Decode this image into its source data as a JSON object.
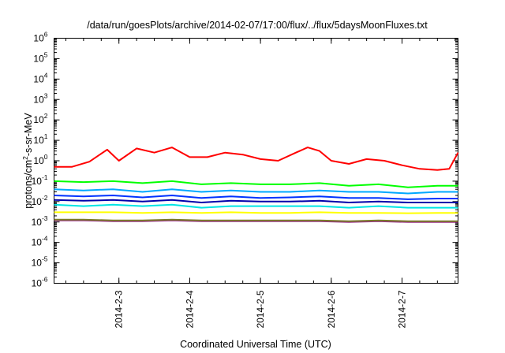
{
  "chart_data": {
    "type": "line",
    "title": "/data/run/goesPlots/archive/2014-02-07/17:00/flux/../flux/5daysMoonFluxes.txt",
    "xlabel": "Coordinated Universal Time (UTC)",
    "ylabel": {
      "prefix": "protons/cm",
      "sup": "2",
      "suffix": "-s-sr-MeV"
    },
    "yscale": "log",
    "ylim": [
      1e-06,
      1000000.0
    ],
    "y_ticks": [
      {
        "base": "10",
        "exp": "-6"
      },
      {
        "base": "10",
        "exp": "-5"
      },
      {
        "base": "10",
        "exp": "-4"
      },
      {
        "base": "10",
        "exp": "-3"
      },
      {
        "base": "10",
        "exp": "-2"
      },
      {
        "base": "10",
        "exp": "-1"
      },
      {
        "base": "10",
        "exp": "0"
      },
      {
        "base": "10",
        "exp": "1"
      },
      {
        "base": "10",
        "exp": "2"
      },
      {
        "base": "10",
        "exp": "3"
      },
      {
        "base": "10",
        "exp": "4"
      },
      {
        "base": "10",
        "exp": "5"
      },
      {
        "base": "10",
        "exp": "6"
      }
    ],
    "xlim": [
      "2014-02-02 02:00",
      "2014-02-07 19:00"
    ],
    "x_ticks": [
      "2014-2-3",
      "2014-2-4",
      "2014-2-5",
      "2014-2-6",
      "2014-2-7"
    ],
    "grid": false,
    "legend": "none",
    "series": [
      {
        "color": "#ff0000",
        "x": [
          "2014-02-02 02:00",
          "2014-02-02 08:00",
          "2014-02-02 14:00",
          "2014-02-02 20:00",
          "2014-02-03 00:00",
          "2014-02-03 06:00",
          "2014-02-03 12:00",
          "2014-02-03 18:00",
          "2014-02-04 00:00",
          "2014-02-04 06:00",
          "2014-02-04 12:00",
          "2014-02-04 18:00",
          "2014-02-05 00:00",
          "2014-02-05 06:00",
          "2014-02-05 12:00",
          "2014-02-05 16:00",
          "2014-02-05 20:00",
          "2014-02-06 00:00",
          "2014-02-06 06:00",
          "2014-02-06 12:00",
          "2014-02-06 18:00",
          "2014-02-07 00:00",
          "2014-02-07 06:00",
          "2014-02-07 12:00",
          "2014-02-07 16:00",
          "2014-02-07 19:00"
        ],
        "values": [
          0.5,
          0.5,
          0.9,
          3.5,
          1.0,
          4.0,
          2.5,
          4.5,
          1.5,
          1.5,
          2.5,
          2.0,
          1.2,
          1.0,
          2.5,
          4.5,
          3.0,
          1.0,
          0.7,
          1.2,
          1.0,
          0.6,
          0.4,
          0.35,
          0.4,
          2.5
        ]
      },
      {
        "color": "#00ff00",
        "x": [
          "2014-02-02 02:00",
          "2014-02-02 12:00",
          "2014-02-02 22:00",
          "2014-02-03 08:00",
          "2014-02-03 18:00",
          "2014-02-04 04:00",
          "2014-02-04 14:00",
          "2014-02-05 00:00",
          "2014-02-05 10:00",
          "2014-02-05 20:00",
          "2014-02-06 06:00",
          "2014-02-06 16:00",
          "2014-02-07 02:00",
          "2014-02-07 12:00",
          "2014-02-07 19:00"
        ],
        "values": [
          0.1,
          0.09,
          0.1,
          0.08,
          0.1,
          0.07,
          0.08,
          0.07,
          0.07,
          0.08,
          0.06,
          0.07,
          0.05,
          0.06,
          0.06
        ]
      },
      {
        "color": "#00a8ff",
        "x": [
          "2014-02-02 02:00",
          "2014-02-02 12:00",
          "2014-02-02 22:00",
          "2014-02-03 08:00",
          "2014-02-03 18:00",
          "2014-02-04 04:00",
          "2014-02-04 14:00",
          "2014-02-05 00:00",
          "2014-02-05 10:00",
          "2014-02-05 20:00",
          "2014-02-06 06:00",
          "2014-02-06 16:00",
          "2014-02-07 02:00",
          "2014-02-07 12:00",
          "2014-02-07 19:00"
        ],
        "values": [
          0.04,
          0.035,
          0.04,
          0.03,
          0.04,
          0.03,
          0.035,
          0.03,
          0.03,
          0.035,
          0.03,
          0.03,
          0.025,
          0.03,
          0.03
        ]
      },
      {
        "color": "#0033ff",
        "x": [
          "2014-02-02 02:00",
          "2014-02-02 12:00",
          "2014-02-02 22:00",
          "2014-02-03 08:00",
          "2014-02-03 18:00",
          "2014-02-04 04:00",
          "2014-02-04 14:00",
          "2014-02-05 00:00",
          "2014-02-05 10:00",
          "2014-02-05 20:00",
          "2014-02-06 06:00",
          "2014-02-06 16:00",
          "2014-02-07 02:00",
          "2014-02-07 12:00",
          "2014-02-07 19:00"
        ],
        "values": [
          0.02,
          0.018,
          0.02,
          0.016,
          0.02,
          0.015,
          0.018,
          0.015,
          0.016,
          0.018,
          0.015,
          0.015,
          0.013,
          0.014,
          0.014
        ]
      },
      {
        "color": "#0000aa",
        "x": [
          "2014-02-02 02:00",
          "2014-02-02 12:00",
          "2014-02-02 22:00",
          "2014-02-03 08:00",
          "2014-02-03 18:00",
          "2014-02-04 04:00",
          "2014-02-04 14:00",
          "2014-02-05 00:00",
          "2014-02-05 10:00",
          "2014-02-05 20:00",
          "2014-02-06 06:00",
          "2014-02-06 16:00",
          "2014-02-07 02:00",
          "2014-02-07 12:00",
          "2014-02-07 19:00"
        ],
        "values": [
          0.012,
          0.011,
          0.012,
          0.01,
          0.012,
          0.009,
          0.011,
          0.01,
          0.01,
          0.011,
          0.009,
          0.01,
          0.009,
          0.009,
          0.009
        ]
      },
      {
        "color": "#00e5e5",
        "x": [
          "2014-02-02 02:00",
          "2014-02-02 12:00",
          "2014-02-02 22:00",
          "2014-02-03 08:00",
          "2014-02-03 18:00",
          "2014-02-04 04:00",
          "2014-02-04 14:00",
          "2014-02-05 00:00",
          "2014-02-05 10:00",
          "2014-02-05 20:00",
          "2014-02-06 06:00",
          "2014-02-06 16:00",
          "2014-02-07 02:00",
          "2014-02-07 12:00",
          "2014-02-07 19:00"
        ],
        "values": [
          0.007,
          0.006,
          0.007,
          0.006,
          0.007,
          0.005,
          0.006,
          0.006,
          0.006,
          0.006,
          0.005,
          0.006,
          0.005,
          0.005,
          0.005
        ]
      },
      {
        "color": "#ffff00",
        "x": [
          "2014-02-02 02:00",
          "2014-02-02 12:00",
          "2014-02-02 22:00",
          "2014-02-03 08:00",
          "2014-02-03 18:00",
          "2014-02-04 04:00",
          "2014-02-04 14:00",
          "2014-02-05 00:00",
          "2014-02-05 10:00",
          "2014-02-05 20:00",
          "2014-02-06 06:00",
          "2014-02-06 16:00",
          "2014-02-07 02:00",
          "2014-02-07 12:00",
          "2014-02-07 19:00"
        ],
        "values": [
          0.003,
          0.003,
          0.003,
          0.0028,
          0.003,
          0.0028,
          0.003,
          0.0028,
          0.0028,
          0.003,
          0.0028,
          0.0028,
          0.0027,
          0.0028,
          0.0028
        ]
      },
      {
        "color": "#7a7a2a",
        "x": [
          "2014-02-02 02:00",
          "2014-02-02 12:00",
          "2014-02-02 22:00",
          "2014-02-03 08:00",
          "2014-02-03 18:00",
          "2014-02-04 04:00",
          "2014-02-04 14:00",
          "2014-02-05 00:00",
          "2014-02-05 10:00",
          "2014-02-05 20:00",
          "2014-02-06 06:00",
          "2014-02-06 16:00",
          "2014-02-07 02:00",
          "2014-02-07 12:00",
          "2014-02-07 19:00"
        ],
        "values": [
          0.0013,
          0.0013,
          0.0012,
          0.0012,
          0.0013,
          0.0012,
          0.0012,
          0.0012,
          0.0012,
          0.0012,
          0.0011,
          0.0012,
          0.0011,
          0.0011,
          0.0011
        ]
      },
      {
        "color": "#9b2d8c",
        "x": [
          "2014-02-02 02:00",
          "2014-02-02 12:00",
          "2014-02-02 22:00",
          "2014-02-03 08:00",
          "2014-02-03 18:00",
          "2014-02-04 04:00",
          "2014-02-04 14:00",
          "2014-02-05 00:00",
          "2014-02-05 10:00",
          "2014-02-05 20:00",
          "2014-02-06 06:00",
          "2014-02-06 16:00",
          "2014-02-07 02:00",
          "2014-02-07 12:00",
          "2014-02-07 19:00"
        ],
        "values": [
          0.0012,
          0.0012,
          0.0011,
          0.0011,
          0.0012,
          0.0011,
          0.0011,
          0.0011,
          0.0011,
          0.0011,
          0.001,
          0.0011,
          0.001,
          0.001,
          0.001
        ]
      }
    ]
  }
}
